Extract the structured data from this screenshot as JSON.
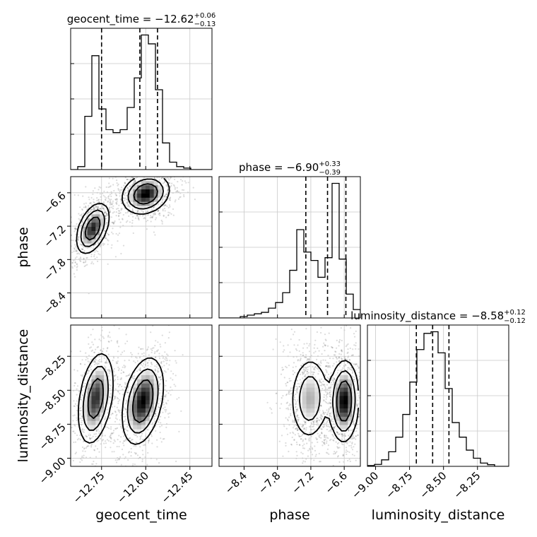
{
  "chart_data": {
    "type": "corner",
    "parameters": [
      "geocent_time",
      "phase",
      "luminosity_distance"
    ],
    "ranges": {
      "geocent_time": [
        -12.855,
        -12.375
      ],
      "phase": [
        -8.85,
        -6.31
      ],
      "luminosity_distance": [
        -9.06,
        -8.02
      ]
    },
    "titles": [
      {
        "parameter": "geocent_time",
        "prefix": "geocent_time = ",
        "median": "−12.62",
        "plus": "+0.06",
        "minus": "−0.13"
      },
      {
        "parameter": "phase",
        "prefix": "phase = ",
        "median": "−6.90",
        "plus": "+0.33",
        "minus": "−0.39"
      },
      {
        "parameter": "luminosity_distance",
        "prefix": "luminosity_distance = ",
        "median": "−8.58",
        "plus": "+0.12",
        "minus": "−0.12"
      }
    ],
    "x_ticks": {
      "geocent_time": [
        {
          "value": -12.75,
          "label": "−12.75"
        },
        {
          "value": -12.6,
          "label": "−12.60"
        },
        {
          "value": -12.45,
          "label": "−12.45"
        }
      ],
      "phase": [
        {
          "value": -8.4,
          "label": "−8.4"
        },
        {
          "value": -7.8,
          "label": "−7.8"
        },
        {
          "value": -7.2,
          "label": "−7.2"
        },
        {
          "value": -6.6,
          "label": "−6.6"
        }
      ],
      "luminosity_distance": [
        {
          "value": -9.0,
          "label": "−9.00"
        },
        {
          "value": -8.75,
          "label": "−8.75"
        },
        {
          "value": -8.5,
          "label": "−8.50"
        },
        {
          "value": -8.25,
          "label": "−8.25"
        }
      ]
    },
    "y_ticks": {
      "phase": [
        {
          "value": -6.6,
          "label": "−6.6"
        },
        {
          "value": -7.2,
          "label": "−7.2"
        },
        {
          "value": -7.8,
          "label": "−7.8"
        },
        {
          "value": -8.4,
          "label": "−8.4"
        }
      ],
      "luminosity_distance": [
        {
          "value": -8.25,
          "label": "−8.25"
        },
        {
          "value": -8.5,
          "label": "−8.50"
        },
        {
          "value": -8.75,
          "label": "−8.75"
        },
        {
          "value": -9.0,
          "label": "−9.00"
        }
      ]
    },
    "quantiles": {
      "geocent_time": [
        -12.75,
        -12.62,
        -12.56
      ],
      "phase": [
        -7.29,
        -6.9,
        -6.57
      ],
      "luminosity_distance": [
        -8.7,
        -8.58,
        -8.46
      ]
    },
    "histograms": {
      "geocent_time": {
        "bins": [
          -12.855,
          -12.831,
          -12.807,
          -12.783,
          -12.759,
          -12.735,
          -12.711,
          -12.687,
          -12.663,
          -12.639,
          -12.615,
          -12.591,
          -12.567,
          -12.543,
          -12.519,
          -12.495,
          -12.471,
          -12.447,
          -12.423,
          -12.399,
          -12.375
        ],
        "counts": [
          0,
          0.02,
          0.36,
          0.77,
          0.41,
          0.27,
          0.25,
          0.27,
          0.42,
          0.62,
          0.91,
          0.85,
          0.54,
          0.18,
          0.05,
          0.02,
          0.01,
          0,
          0,
          0
        ]
      },
      "phase": {
        "bins": [
          -8.85,
          -8.723,
          -8.596,
          -8.469,
          -8.342,
          -8.215,
          -8.088,
          -7.961,
          -7.834,
          -7.707,
          -7.58,
          -7.453,
          -7.326,
          -7.199,
          -7.072,
          -6.945,
          -6.818,
          -6.691,
          -6.564,
          -6.437,
          -6.31
        ],
        "counts": [
          0,
          0,
          0,
          0.01,
          0.02,
          0.03,
          0.04,
          0.07,
          0.11,
          0.18,
          0.34,
          0.63,
          0.47,
          0.41,
          0.29,
          0.43,
          0.96,
          0.42,
          0.17,
          0.06
        ]
      },
      "luminosity_distance": {
        "bins": [
          -9.06,
          -9.008,
          -8.956,
          -8.904,
          -8.852,
          -8.8,
          -8.748,
          -8.696,
          -8.644,
          -8.592,
          -8.54,
          -8.488,
          -8.436,
          -8.384,
          -8.332,
          -8.28,
          -8.228,
          -8.176,
          -8.124,
          -8.072,
          -8.02
        ],
        "counts": [
          0.005,
          0.012,
          0.04,
          0.09,
          0.18,
          0.32,
          0.52,
          0.72,
          0.82,
          0.83,
          0.7,
          0.48,
          0.27,
          0.18,
          0.1,
          0.05,
          0.02,
          0.01,
          0,
          0
        ]
      }
    },
    "modes_2d": {
      "phase_vs_geocent_time": [
        {
          "x": -12.78,
          "y": -7.24,
          "sx": 0.028,
          "sy": 0.23,
          "rho": 0.45,
          "w": 0.45
        },
        {
          "x": -12.6,
          "y": -6.62,
          "sx": 0.04,
          "sy": 0.18,
          "rho": 0.2,
          "w": 0.55
        }
      ],
      "luminosity_distance_vs_geocent_time": [
        {
          "x": -12.77,
          "y": -8.56,
          "sx": 0.03,
          "sy": 0.17,
          "rho": 0.35,
          "w": 0.45
        },
        {
          "x": -12.61,
          "y": -8.58,
          "sx": 0.035,
          "sy": 0.16,
          "rho": 0.35,
          "w": 0.55
        }
      ],
      "luminosity_distance_vs_phase": [
        {
          "x": -7.22,
          "y": -8.56,
          "sx": 0.18,
          "sy": 0.16,
          "rho": 0.05,
          "w": 0.45
        },
        {
          "x": -6.6,
          "y": -8.58,
          "sx": 0.13,
          "sy": 0.15,
          "rho": 0.05,
          "w": 0.55
        }
      ]
    },
    "grid": true
  }
}
